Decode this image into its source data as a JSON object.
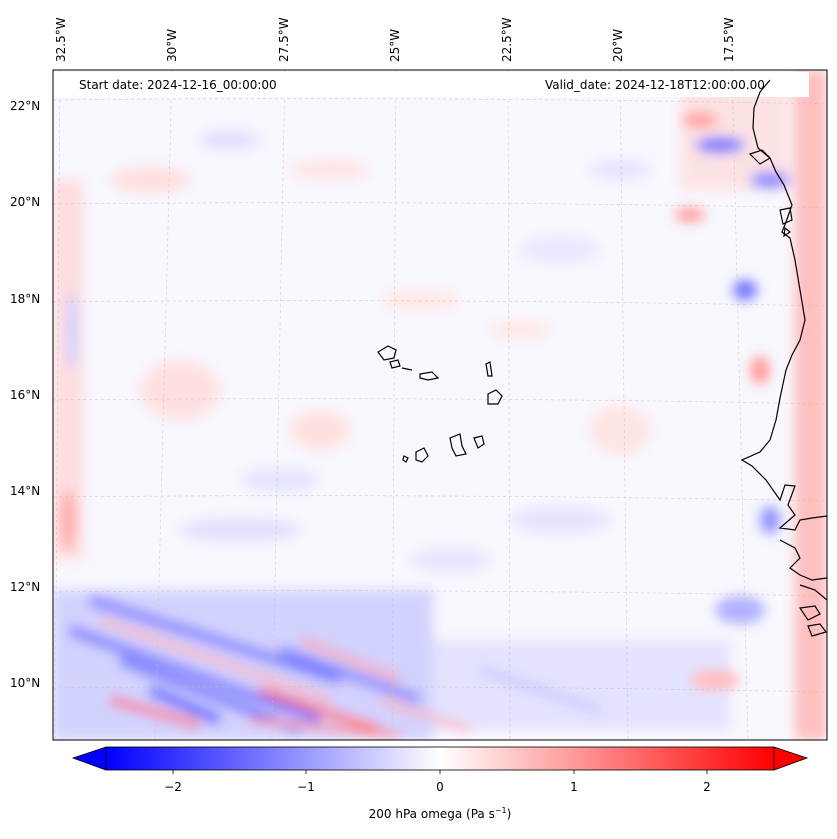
{
  "map": {
    "start_date": "Start date: 2024-12-16_00:00:00",
    "valid_date": "Valid_date: 2024-12-18T12:00:00.00",
    "lon_labels": [
      "32.5°W",
      "30°W",
      "27.5°W",
      "25°W",
      "22.5°W",
      "20°W",
      "17.5°W"
    ],
    "lat_labels": [
      "22°N",
      "20°N",
      "18°N",
      "16°N",
      "14°N",
      "12°N",
      "10°N"
    ],
    "extent": {
      "lon": [
        -32.6,
        -15.6
      ],
      "lat": [
        8.9,
        22.8
      ]
    },
    "field": "200 hPa omega",
    "coastline": "West Africa coast and Cape Verde islands",
    "gridlines": true
  },
  "colorbar": {
    "ticks": [
      "−2",
      "−1",
      "0",
      "1",
      "2"
    ],
    "range": [
      -2.6,
      2.6
    ],
    "cmap": "bwr",
    "colors": {
      "negative": "#0000ff",
      "neutral": "#ffffff",
      "positive": "#ff0000"
    },
    "label_main": "200 hPa omega (Pa s",
    "label_sup": "−1",
    "label_end": ")"
  }
}
